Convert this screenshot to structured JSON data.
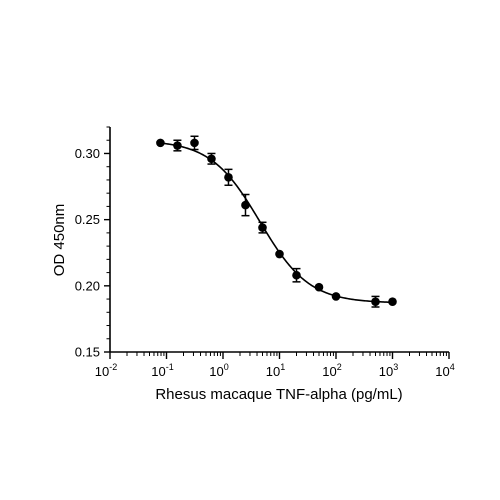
{
  "chart_data": {
    "type": "scatter",
    "title": "",
    "xlabel": "Rhesus macaque TNF-alpha (pg/mL)",
    "ylabel": "OD 450nm",
    "xscale": "log",
    "xlim": [
      0.01,
      10000
    ],
    "ylim": [
      0.15,
      0.32
    ],
    "grid": false,
    "x_ticks": [
      {
        "value": 0.01,
        "base": "10",
        "exp": "-2"
      },
      {
        "value": 0.1,
        "base": "10",
        "exp": "-1"
      },
      {
        "value": 1,
        "base": "10",
        "exp": "0"
      },
      {
        "value": 10,
        "base": "10",
        "exp": "1"
      },
      {
        "value": 100,
        "base": "10",
        "exp": "2"
      },
      {
        "value": 1000,
        "base": "10",
        "exp": "3"
      },
      {
        "value": 10000,
        "base": "10",
        "exp": "4"
      }
    ],
    "y_ticks": [
      {
        "value": 0.15,
        "label": "0.15"
      },
      {
        "value": 0.2,
        "label": "0.20"
      },
      {
        "value": 0.25,
        "label": "0.25"
      },
      {
        "value": 0.3,
        "label": "0.30"
      }
    ],
    "series": [
      {
        "points": [
          {
            "x": 0.078,
            "y": 0.308,
            "err": 0.0
          },
          {
            "x": 0.156,
            "y": 0.306,
            "err": 0.004
          },
          {
            "x": 0.313,
            "y": 0.308,
            "err": 0.005
          },
          {
            "x": 0.625,
            "y": 0.296,
            "err": 0.004
          },
          {
            "x": 1.25,
            "y": 0.282,
            "err": 0.006
          },
          {
            "x": 2.5,
            "y": 0.261,
            "err": 0.008
          },
          {
            "x": 5,
            "y": 0.244,
            "err": 0.004
          },
          {
            "x": 10,
            "y": 0.224,
            "err": 0.0
          },
          {
            "x": 20,
            "y": 0.208,
            "err": 0.005
          },
          {
            "x": 50,
            "y": 0.199,
            "err": 0.0
          },
          {
            "x": 100,
            "y": 0.192,
            "err": 0.0
          },
          {
            "x": 500,
            "y": 0.188,
            "err": 0.004
          },
          {
            "x": 1000,
            "y": 0.188,
            "err": 0.0
          }
        ],
        "fit": {
          "model": "4PL",
          "top": 0.31,
          "bottom": 0.187,
          "ec50": 4.5,
          "hill": 1.0,
          "x_range": [
            0.078,
            1000
          ]
        }
      }
    ]
  }
}
